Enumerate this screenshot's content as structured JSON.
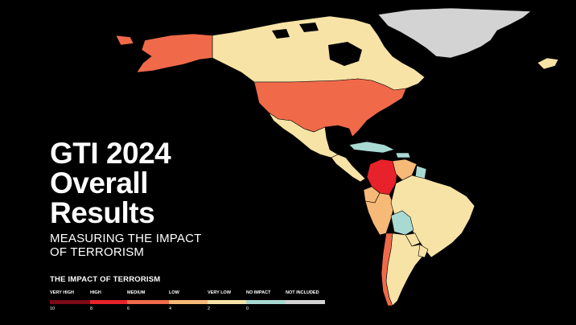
{
  "title": {
    "line1": "GTI 2024",
    "line2": "Overall",
    "line3": "Results"
  },
  "subtitle": {
    "line1": "MEASURING THE IMPACT",
    "line2": "OF TERRORISM"
  },
  "legend": {
    "title": "THE IMPACT OF TERRORISM",
    "categories": [
      {
        "label": "VERY HIGH",
        "color": "#7a0a14"
      },
      {
        "label": "HIGH",
        "color": "#e8222a"
      },
      {
        "label": "MEDIUM",
        "color": "#f06a4a"
      },
      {
        "label": "LOW",
        "color": "#f6b977"
      },
      {
        "label": "VERY LOW",
        "color": "#f7e3a6"
      },
      {
        "label": "NO IMPACT",
        "color": "#a9d9d3"
      },
      {
        "label": "NOT INCLUDED",
        "color": "#d3d3d3"
      }
    ],
    "ticks": [
      "10",
      "8",
      "6",
      "4",
      "2",
      "0"
    ]
  },
  "map_colors": {
    "greenland": "#d3d3d3",
    "canada": "#f7e3a6",
    "alaska": "#f06a4a",
    "usa": "#f06a4a",
    "mexico": "#f7e3a6",
    "central_america": "#f7e3a6",
    "caribbean": "#a9d9d3",
    "colombia": "#e8222a",
    "venezuela": "#f6b977",
    "guyana": "#a9d9d3",
    "ecuador": "#f6b977",
    "peru": "#f6b977",
    "brazil": "#f7e3a6",
    "bolivia": "#a9d9d3",
    "paraguay": "#f7e3a6",
    "chile": "#f06a4a",
    "argentina": "#f7e3a6",
    "uruguay": "#f7e3a6",
    "iceland": "#f7e3a6"
  }
}
